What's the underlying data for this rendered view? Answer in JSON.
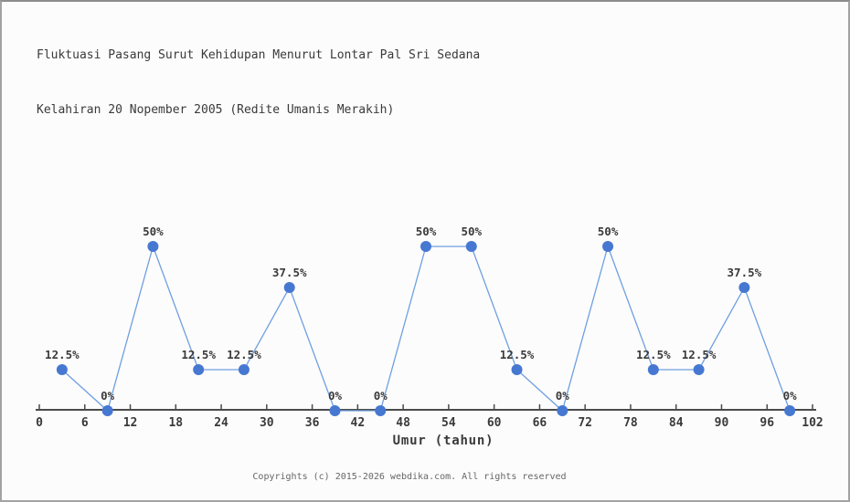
{
  "title": {
    "line1": "Fluktuasi Pasang Surut Kehidupan Menurut Lontar Pal Sri Sedana",
    "line2": "Kelahiran 20 Nopember 2005 (Redite Umanis Merakih)"
  },
  "footer": {
    "copyright": "Copyrights (c) 2015-2026 webdika.com. All rights reserved"
  },
  "chart_data": {
    "type": "line",
    "title": "Fluktuasi Pasang Surut Kehidupan Menurut Lontar Pal Sri Sedana Kelahiran 20 Nopember 2005 (Redite Umanis Merakih)",
    "xlabel": "Umur (tahun)",
    "ylabel": "",
    "x": [
      3,
      9,
      15,
      21,
      27,
      33,
      39,
      45,
      51,
      57,
      63,
      69,
      75,
      81,
      87,
      93,
      99
    ],
    "values": [
      12.5,
      0,
      50,
      12.5,
      12.5,
      37.5,
      0,
      0,
      50,
      50,
      12.5,
      0,
      50,
      12.5,
      12.5,
      37.5,
      0
    ],
    "point_labels": [
      "12.5%",
      "0%",
      "50%",
      "12.5%",
      "12.5%",
      "37.5%",
      "0%",
      "0%",
      "50%",
      "50%",
      "12.5%",
      "0%",
      "50%",
      "12.5%",
      "12.5%",
      "37.5%",
      "0%"
    ],
    "x_ticks": [
      0,
      6,
      12,
      18,
      24,
      30,
      36,
      42,
      48,
      54,
      60,
      66,
      72,
      78,
      84,
      90,
      96,
      102
    ],
    "xlim": [
      0,
      102
    ],
    "ylim": [
      0,
      62.5
    ],
    "grid": false,
    "legend": "none",
    "line_color": "#6f9fe0",
    "marker_color": "#4678d2",
    "axis_color": "#4a4a4a",
    "tick_label_color": "#3a3a3a",
    "point_label_color": "#3a3a3a"
  }
}
